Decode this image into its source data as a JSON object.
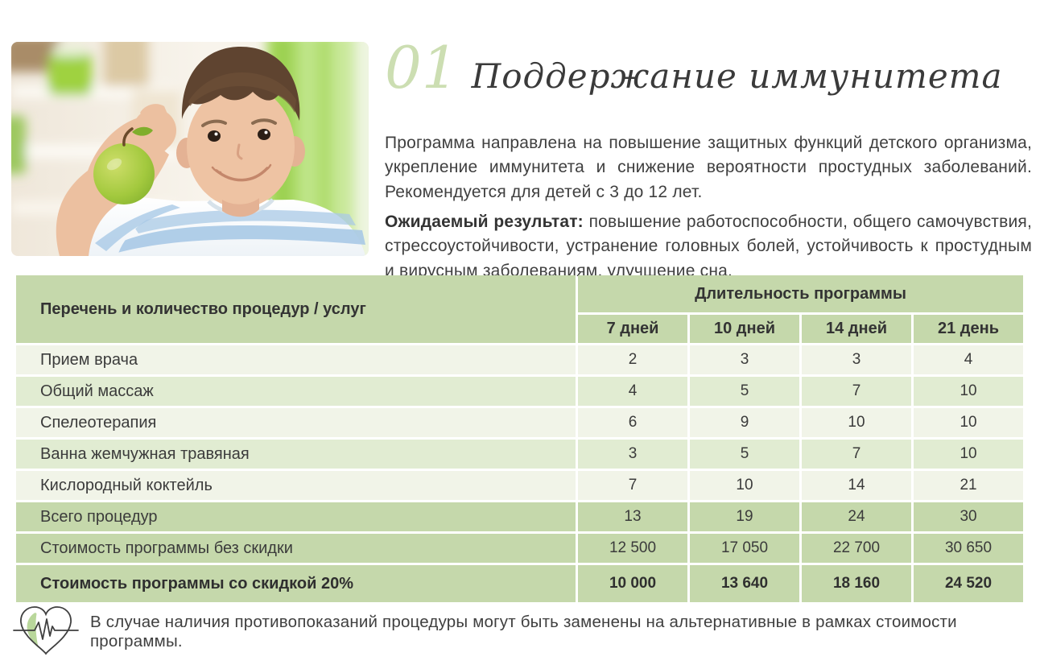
{
  "page": {
    "section_number": "01",
    "title": "Поддержание иммунитета",
    "description": "Программа направлена на повышение защитных функций детского организма, укрепление иммунитета и снижение вероятности простудных заболеваний. Рекомендуется для детей с 3 до 12 лет.",
    "expected_result_label": "Ожидаемый результат:",
    "expected_result_text": " повышение работоспособности, общего самочувствия, стрессоустойчивости, устранение головных болей, устойчивость к простудным и вирусным заболеваниям, улучшение сна.",
    "footer_note": "В случае наличия противопоказаний процедуры могут быть заменены на альтернативные в рамках стоимости программы."
  },
  "table": {
    "col_header_label": "Перечень и количество процедур / услуг",
    "duration_header": "Длительность программы",
    "duration_columns": [
      "7 дней",
      "10 дней",
      "14 дней",
      "21 день"
    ],
    "rows": [
      {
        "label": "Прием врача",
        "values": [
          "2",
          "3",
          "3",
          "4"
        ],
        "style": "light"
      },
      {
        "label": "Общий массаж",
        "values": [
          "4",
          "5",
          "7",
          "10"
        ],
        "style": "mid"
      },
      {
        "label": "Спелеотерапия",
        "values": [
          "6",
          "9",
          "10",
          "10"
        ],
        "style": "light"
      },
      {
        "label": "Ванна жемчужная травяная",
        "values": [
          "3",
          "5",
          "7",
          "10"
        ],
        "style": "mid"
      },
      {
        "label": "Кислородный коктейль",
        "values": [
          "7",
          "10",
          "14",
          "21"
        ],
        "style": "light"
      },
      {
        "label": "Всего процедур",
        "values": [
          "13",
          "19",
          "24",
          "30"
        ],
        "style": "sage"
      },
      {
        "label": "Стоимость программы без скидки",
        "values": [
          "12 500",
          "17 050",
          "22 700",
          "30 650"
        ],
        "style": "sage"
      },
      {
        "label": "Стоимость программы со скидкой 20%",
        "values": [
          "10 000",
          "13 640",
          "18 160",
          "24 520"
        ],
        "style": "sage bold"
      }
    ]
  },
  "colors": {
    "accent_sage": "#c5d8ab",
    "row_mid": "#e1ecd2",
    "row_light": "#f1f4e8",
    "title_green": "#ccdeb2",
    "text": "#3c3c3c",
    "apple_green": "#9fc93c",
    "curtain_green": "#8ed13f"
  },
  "icons": {
    "heart_pulse": "heart-with-ecg-pulse"
  }
}
